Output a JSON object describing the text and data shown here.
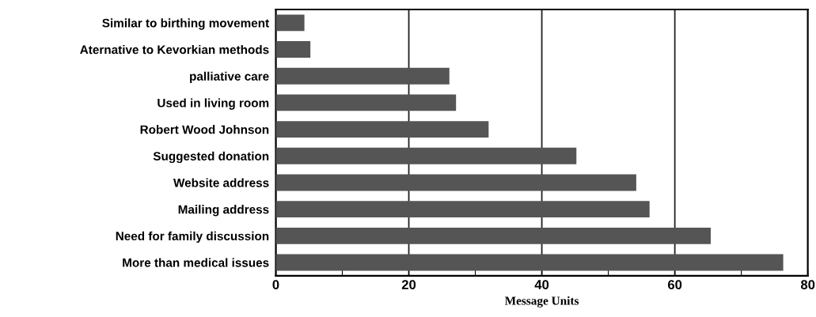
{
  "chart_data": {
    "type": "bar",
    "orientation": "horizontal",
    "xlabel": "Message Units",
    "categories": [
      "Similar to birthing movement",
      "Aternative to Kevorkian methods",
      "palliative care",
      "Used in living room",
      "Robert Wood Johnson",
      "Suggested donation",
      "Website address",
      "Mailing address",
      "Need for family discussion",
      "More than medical issues"
    ],
    "values": [
      4.3,
      5.2,
      26.1,
      27.1,
      32.0,
      45.2,
      54.2,
      56.2,
      65.4,
      76.3
    ],
    "color": "#555555",
    "xlim": [
      0,
      80
    ],
    "xticks": [
      0,
      {
        "value": 10,
        "label": null
      },
      20,
      {
        "value": 30,
        "label": null
      },
      40,
      {
        "value": 50,
        "label": null
      },
      60,
      {
        "value": 70,
        "label": null
      },
      80
    ],
    "grid": "x"
  }
}
